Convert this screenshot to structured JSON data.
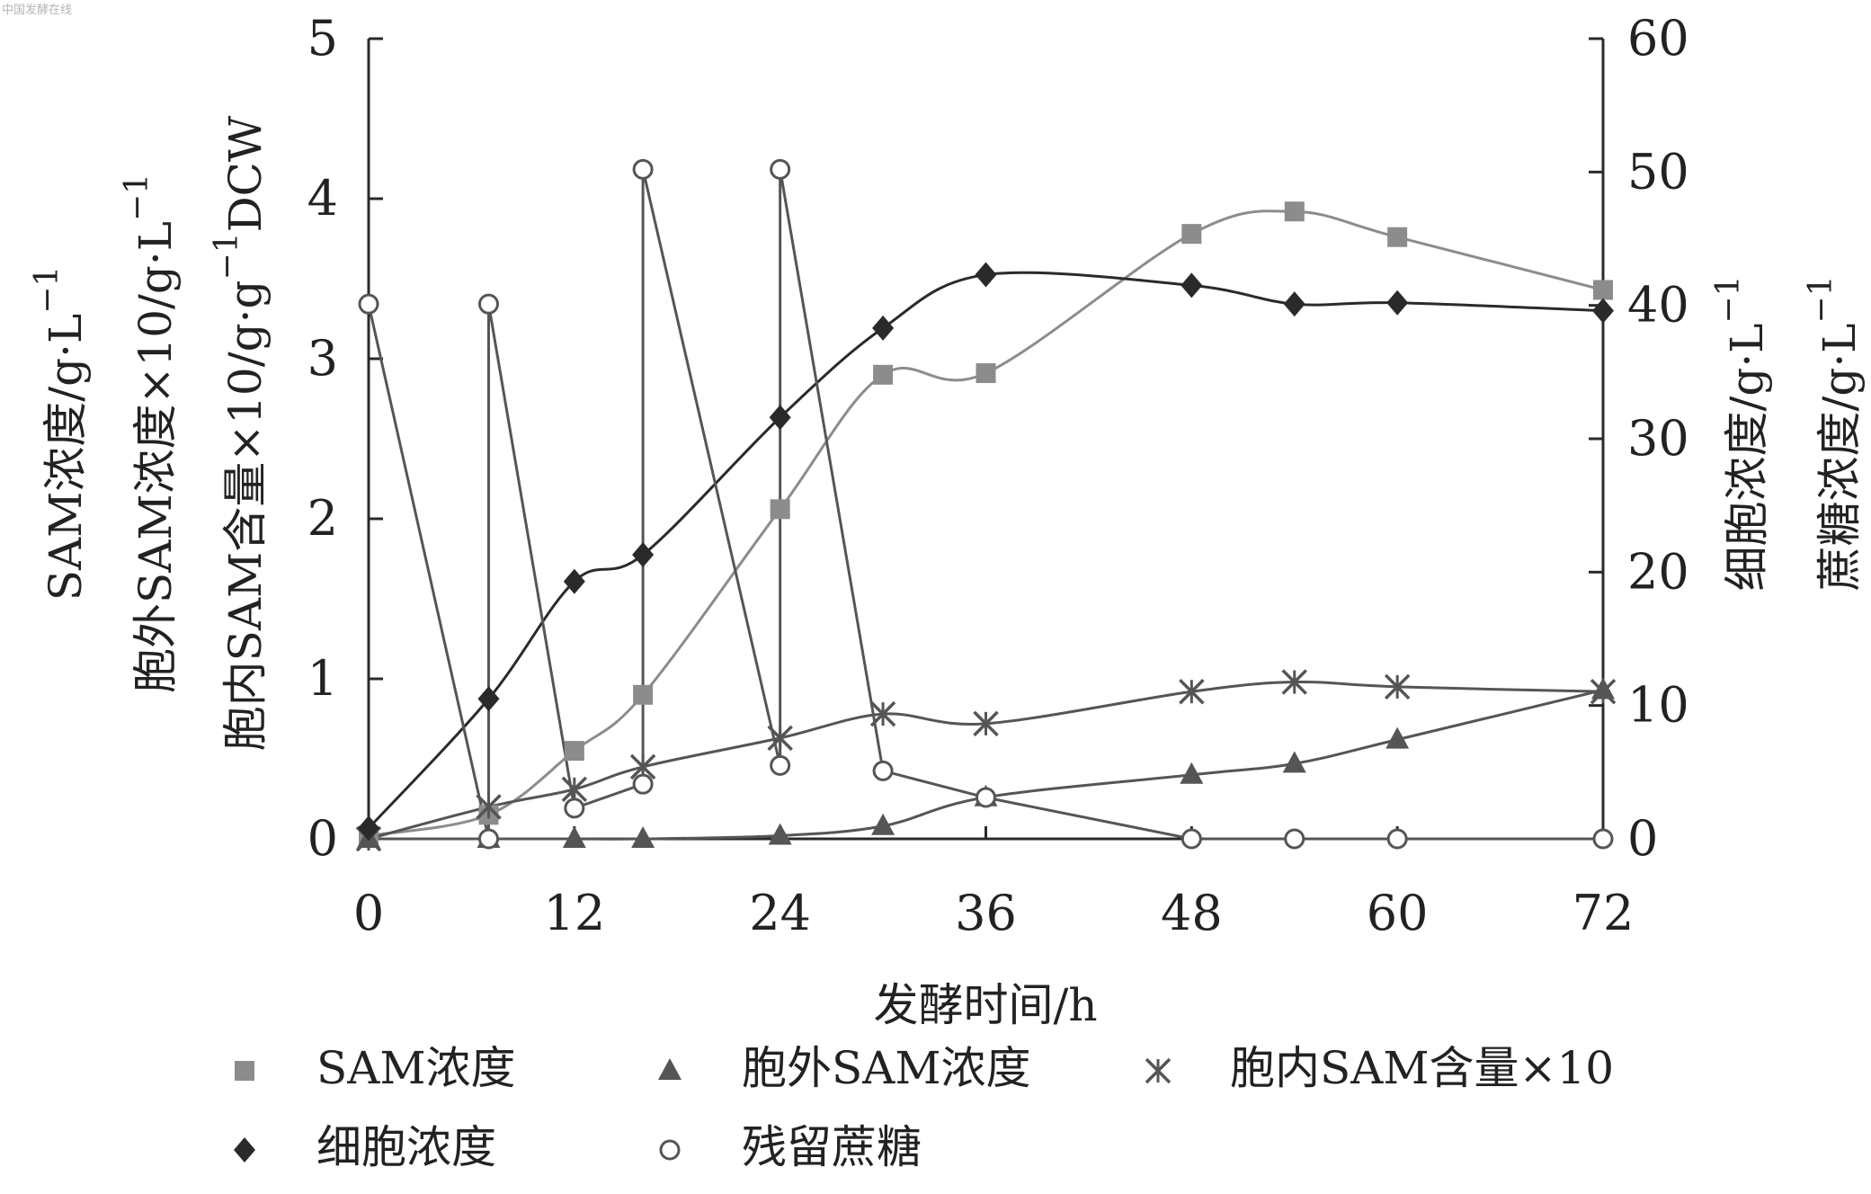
{
  "watermark": "中国发酵在线",
  "chart_data": {
    "type": "scatter",
    "x_label": "发酵时间/h",
    "y_left_label_lines": [
      "SAM浓度/g·L",
      "胞外SAM浓度×10/g·L",
      "胞内SAM含量×10/g·g"
    ],
    "y_left_label_tail": "DCW",
    "y_right_label_lines": [
      "细胞浓度/g·L",
      "蔗糖浓度/g·L"
    ],
    "superscript": "−1",
    "x_ticks": [
      0,
      12,
      24,
      36,
      48,
      60,
      72
    ],
    "x_range": [
      0,
      72
    ],
    "y_left_ticks": [
      0,
      1,
      2,
      3,
      4,
      5
    ],
    "y_left_range": [
      0,
      5
    ],
    "y_right_ticks": [
      0,
      10,
      20,
      30,
      40,
      50,
      60
    ],
    "y_right_range": [
      0,
      60
    ],
    "legend_rows": [
      [
        "SAM浓度",
        "胞外SAM浓度",
        "胞内SAM含量×10"
      ],
      [
        "细胞浓度",
        "残留蔗糖"
      ]
    ],
    "series": [
      {
        "name": "SAM浓度",
        "axis": "left",
        "marker": "square",
        "color": "#8c8c8c",
        "x": [
          0,
          7,
          12,
          16,
          24,
          30,
          36,
          48,
          54,
          60,
          72
        ],
        "y": [
          0.02,
          0.15,
          0.55,
          0.9,
          2.06,
          2.9,
          2.91,
          3.78,
          3.92,
          3.76,
          3.43
        ]
      },
      {
        "name": "胞外SAM浓度",
        "axis": "left",
        "marker": "triangle",
        "color": "#555555",
        "x": [
          0,
          7,
          12,
          16,
          24,
          30,
          36,
          48,
          54,
          60,
          72
        ],
        "y": [
          0.0,
          0.0,
          0.0,
          0.0,
          0.02,
          0.08,
          0.26,
          0.4,
          0.47,
          0.62,
          0.93
        ]
      },
      {
        "name": "胞内SAM含量×10",
        "axis": "left",
        "marker": "x",
        "color": "#555555",
        "x": [
          0,
          7,
          12,
          16,
          24,
          30,
          36,
          48,
          54,
          60,
          72
        ],
        "y": [
          0.0,
          0.2,
          0.31,
          0.45,
          0.63,
          0.78,
          0.72,
          0.92,
          0.98,
          0.95,
          0.92
        ]
      },
      {
        "name": "细胞浓度",
        "axis": "right",
        "marker": "diamond",
        "color": "#2a2a2a",
        "x": [
          0,
          7,
          12,
          16,
          24,
          30,
          36,
          48,
          54,
          60,
          72
        ],
        "y": [
          0.8,
          10.5,
          19.3,
          21.3,
          31.6,
          38.3,
          42.3,
          41.5,
          40.1,
          40.2,
          39.6
        ]
      },
      {
        "name": "残留蔗糖",
        "axis": "right",
        "marker": "circle",
        "color": "#555555",
        "x": [
          0,
          7,
          7,
          12,
          16,
          16,
          24,
          24,
          30,
          36,
          48,
          54,
          60,
          72
        ],
        "y": [
          40.1,
          0.0,
          40.1,
          2.3,
          4.1,
          50.2,
          5.5,
          50.2,
          5.1,
          3.1,
          0.0,
          0.0,
          0.0,
          0.0
        ]
      }
    ]
  }
}
